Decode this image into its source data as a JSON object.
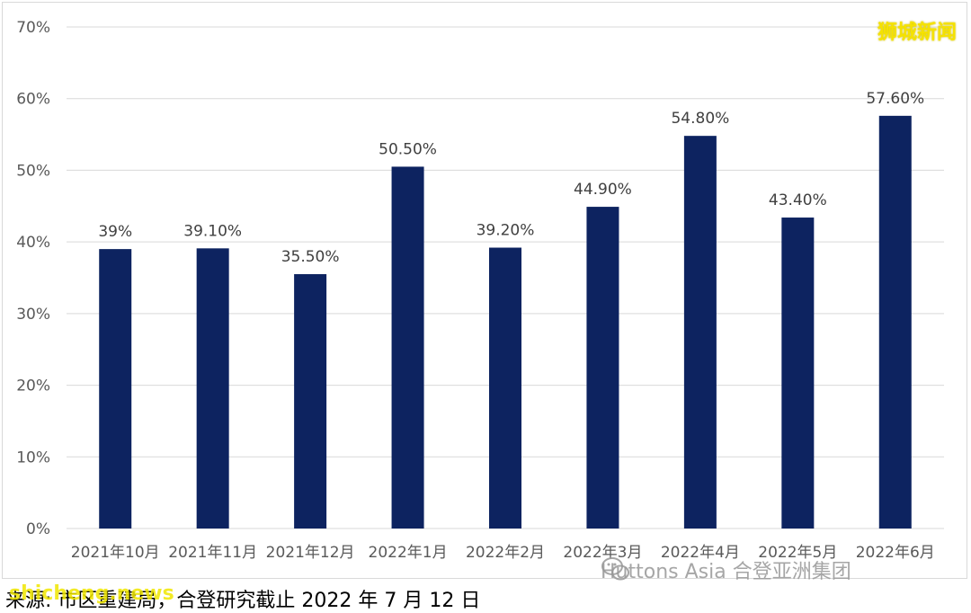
{
  "watermark": "狮城新闻",
  "brand": {
    "text": "Huttons Asia 合登亚洲集团",
    "icon": "wechat-icon"
  },
  "source": "来源: 市区重建局，合登研究截止 2022 年 7 月 12 日",
  "site_overlay": "shicheng.news",
  "colors": {
    "bar": "#0d2360",
    "grid": "#d9d9d9",
    "watermark": "#f5e200"
  },
  "chart_data": {
    "type": "bar",
    "title": "",
    "xlabel": "",
    "ylabel": "",
    "categories": [
      "2021年10月",
      "2021年11月",
      "2021年12月",
      "2022年1月",
      "2022年2月",
      "2022年3月",
      "2022年4月",
      "2022年5月",
      "2022年6月"
    ],
    "values": [
      39,
      39.1,
      35.5,
      50.5,
      39.2,
      44.9,
      54.8,
      43.4,
      57.6
    ],
    "data_labels": [
      "39%",
      "39.10%",
      "35.50%",
      "50.50%",
      "39.20%",
      "44.90%",
      "54.80%",
      "43.40%",
      "57.60%"
    ],
    "ylim": [
      0,
      70
    ],
    "yticks": [
      "0%",
      "10%",
      "20%",
      "30%",
      "40%",
      "50%",
      "60%",
      "70%"
    ],
    "grid": true,
    "legend": "none"
  }
}
